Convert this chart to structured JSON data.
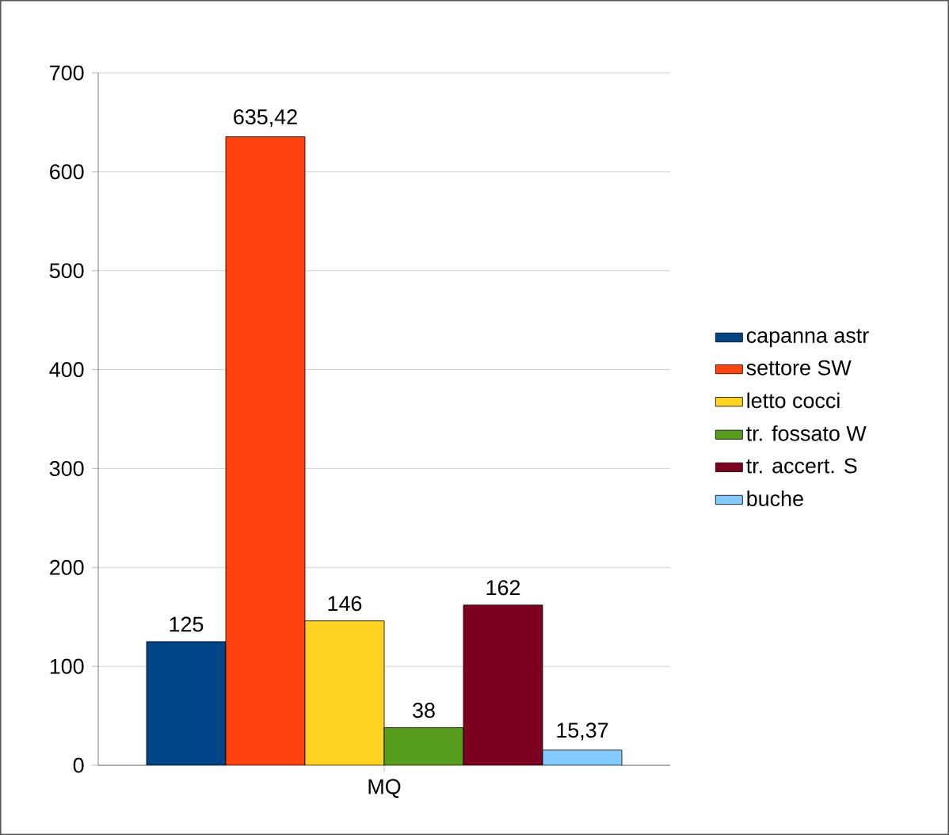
{
  "chart_data": {
    "type": "bar",
    "categories": [
      "MQ"
    ],
    "series": [
      {
        "name": "capanna astr",
        "color": "#004586",
        "values": [
          125
        ],
        "value_labels": [
          "125"
        ]
      },
      {
        "name": "settore SW",
        "color": "#ff420e",
        "values": [
          635.42
        ],
        "value_labels": [
          "635,42"
        ]
      },
      {
        "name": "letto cocci",
        "color": "#ffd320",
        "values": [
          146
        ],
        "value_labels": [
          "146"
        ]
      },
      {
        "name": "tr. fossato W",
        "color": "#579d1c",
        "values": [
          38
        ],
        "value_labels": [
          "38"
        ]
      },
      {
        "name": "tr. accert. S",
        "color": "#7e0021",
        "values": [
          162
        ],
        "value_labels": [
          "162"
        ]
      },
      {
        "name": "buche",
        "color": "#83caff",
        "values": [
          15.37
        ],
        "value_labels": [
          "15,37"
        ]
      }
    ],
    "ylim": [
      0,
      700
    ],
    "yticks": [
      0,
      100,
      200,
      300,
      400,
      500,
      600,
      700
    ],
    "grid": "y",
    "legend": "right"
  }
}
